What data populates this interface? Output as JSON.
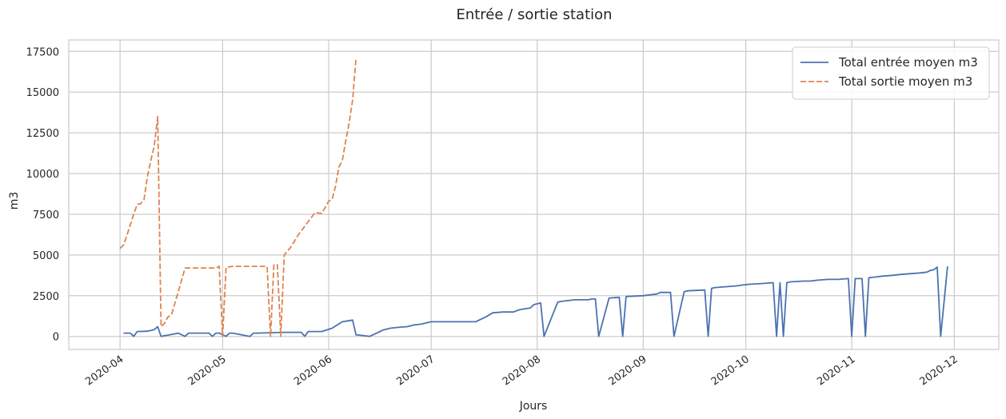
{
  "chart_data": {
    "type": "line",
    "title": "Entrée / sortie station",
    "xlabel": "Jours",
    "ylabel": "m3",
    "xlim": [
      "2020-03-17",
      "2020-12-14"
    ],
    "ylim": [
      -800,
      18200
    ],
    "x_ticks": [
      "2020-04-01",
      "2020-05-01",
      "2020-06-01",
      "2020-07-01",
      "2020-08-01",
      "2020-09-01",
      "2020-10-01",
      "2020-11-01",
      "2020-12-01"
    ],
    "x_tick_labels": [
      "2020-04",
      "2020-05",
      "2020-06",
      "2020-07",
      "2020-08",
      "2020-09",
      "2020-10",
      "2020-11",
      "2020-12"
    ],
    "y_ticks": [
      0,
      2500,
      5000,
      7500,
      10000,
      12500,
      15000,
      17500
    ],
    "y_tick_labels": [
      "0",
      "2500",
      "5000",
      "7500",
      "10000",
      "12500",
      "15000",
      "17500"
    ],
    "grid": true,
    "legend_position": "top-right",
    "series": [
      {
        "name": "Total entrée moyen m3",
        "color": "#4c72b0",
        "style": "solid",
        "x": [
          "2020-04-02",
          "2020-04-04",
          "2020-04-05",
          "2020-04-06",
          "2020-04-09",
          "2020-04-11",
          "2020-04-12",
          "2020-04-13",
          "2020-04-14",
          "2020-04-15",
          "2020-04-18",
          "2020-04-20",
          "2020-04-21",
          "2020-04-22",
          "2020-04-27",
          "2020-04-28",
          "2020-04-29",
          "2020-04-30",
          "2020-05-02",
          "2020-05-03",
          "2020-05-04",
          "2020-05-09",
          "2020-05-10",
          "2020-05-11",
          "2020-05-19",
          "2020-05-24",
          "2020-05-25",
          "2020-05-26",
          "2020-05-30",
          "2020-06-02",
          "2020-06-05",
          "2020-06-08",
          "2020-06-09",
          "2020-06-10",
          "2020-06-13",
          "2020-06-17",
          "2020-06-19",
          "2020-06-21",
          "2020-06-24",
          "2020-06-26",
          "2020-06-28",
          "2020-07-01",
          "2020-07-14",
          "2020-07-15",
          "2020-07-17",
          "2020-07-19",
          "2020-07-22",
          "2020-07-25",
          "2020-07-27",
          "2020-07-30",
          "2020-07-31",
          "2020-08-02",
          "2020-08-03",
          "2020-08-07",
          "2020-08-08",
          "2020-08-12",
          "2020-08-16",
          "2020-08-17",
          "2020-08-18",
          "2020-08-19",
          "2020-08-22",
          "2020-08-25",
          "2020-08-26",
          "2020-08-27",
          "2020-09-01",
          "2020-09-05",
          "2020-09-06",
          "2020-09-09",
          "2020-09-10",
          "2020-09-13",
          "2020-09-14",
          "2020-09-19",
          "2020-09-20",
          "2020-09-21",
          "2020-09-22",
          "2020-09-25",
          "2020-09-28",
          "2020-09-30",
          "2020-10-02",
          "2020-10-06",
          "2020-10-09",
          "2020-10-10",
          "2020-10-11",
          "2020-10-12",
          "2020-10-13",
          "2020-10-14",
          "2020-10-18",
          "2020-10-20",
          "2020-10-22",
          "2020-10-25",
          "2020-10-27",
          "2020-10-28",
          "2020-10-31",
          "2020-11-01",
          "2020-11-02",
          "2020-11-04",
          "2020-11-05",
          "2020-11-06",
          "2020-11-08",
          "2020-11-10",
          "2020-11-13",
          "2020-11-15",
          "2020-11-18",
          "2020-11-21",
          "2020-11-23",
          "2020-11-24",
          "2020-11-25",
          "2020-11-26",
          "2020-11-27",
          "2020-11-29"
        ],
        "values": [
          200,
          200,
          0,
          300,
          320,
          420,
          600,
          0,
          50,
          80,
          200,
          0,
          200,
          200,
          200,
          0,
          200,
          200,
          0,
          200,
          200,
          0,
          200,
          200,
          250,
          250,
          0,
          300,
          300,
          500,
          900,
          1000,
          100,
          80,
          0,
          400,
          500,
          550,
          600,
          700,
          750,
          900,
          900,
          1000,
          1200,
          1450,
          1500,
          1500,
          1650,
          1750,
          1950,
          2050,
          0,
          2100,
          2150,
          2250,
          2250,
          2300,
          2300,
          0,
          2350,
          2400,
          0,
          2450,
          2500,
          2600,
          2700,
          2700,
          0,
          2750,
          2800,
          2850,
          0,
          2950,
          3000,
          3050,
          3100,
          3150,
          3200,
          3250,
          3300,
          0,
          3300,
          0,
          3300,
          3350,
          3400,
          3400,
          3450,
          3500,
          3500,
          3500,
          3550,
          0,
          3550,
          3550,
          0,
          3600,
          3650,
          3700,
          3750,
          3800,
          3850,
          3900,
          3950,
          4050,
          4100,
          4250,
          0,
          4300
        ]
      },
      {
        "name": "Total sortie moyen m3",
        "color": "#dd8452",
        "style": "dashed",
        "x": [
          "2020-04-01",
          "2020-04-02",
          "2020-04-03",
          "2020-04-05",
          "2020-04-06",
          "2020-04-07",
          "2020-04-08",
          "2020-04-09",
          "2020-04-10",
          "2020-04-11",
          "2020-04-12",
          "2020-04-13",
          "2020-04-14",
          "2020-04-15",
          "2020-04-16",
          "2020-04-17",
          "2020-04-20",
          "2020-04-29",
          "2020-04-30",
          "2020-05-01",
          "2020-05-02",
          "2020-05-04",
          "2020-05-14",
          "2020-05-15",
          "2020-05-16",
          "2020-05-17",
          "2020-05-18",
          "2020-05-19",
          "2020-05-21",
          "2020-05-23",
          "2020-05-28",
          "2020-05-30",
          "2020-06-01",
          "2020-06-02",
          "2020-06-03",
          "2020-06-04",
          "2020-06-05",
          "2020-06-06",
          "2020-06-07",
          "2020-06-08",
          "2020-06-09"
        ],
        "values": [
          5400,
          5600,
          6200,
          7500,
          8100,
          8150,
          8400,
          9800,
          10800,
          11700,
          13500,
          600,
          800,
          1200,
          1300,
          2000,
          4200,
          4200,
          4300,
          0,
          4250,
          4300,
          4300,
          0,
          4400,
          4400,
          0,
          5000,
          5500,
          6200,
          7600,
          7550,
          8300,
          8400,
          9200,
          10400,
          10800,
          12000,
          13100,
          14500,
          17100
        ]
      }
    ]
  }
}
